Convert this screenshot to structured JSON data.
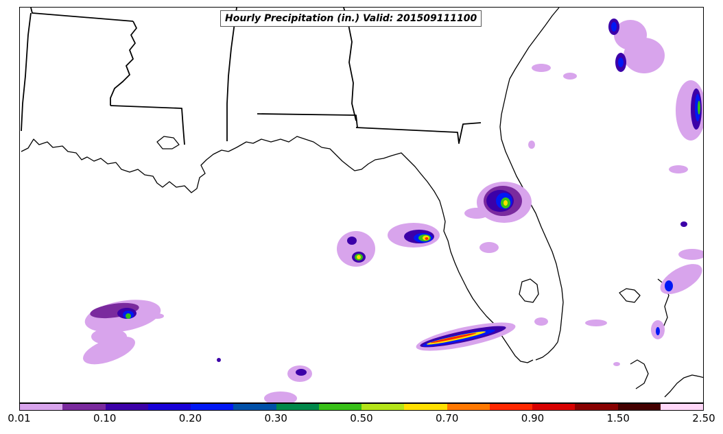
{
  "title": "Hourly Precipitation (in.) Valid: 201509111100",
  "colorbar": {
    "colors": [
      "#d8a4ec",
      "#7a2a9e",
      "#3c00a8",
      "#1800d8",
      "#0018f4",
      "#0050a8",
      "#00884a",
      "#38c018",
      "#b4e418",
      "#ffe000",
      "#ff7800",
      "#ff2800",
      "#d80000",
      "#880000",
      "#440000",
      "#ffd8f8"
    ],
    "tick_labels": [
      "0.01",
      "0.10",
      "0.20",
      "0.30",
      "0.50",
      "0.70",
      "0.90",
      "1.50",
      "2.50"
    ]
  },
  "legend": {
    "light": "#d8a4ec",
    "purple": "#7a2a9e",
    "deep": "#3c00a8",
    "blue": "#0018f4",
    "green": "#38c018",
    "yellow": "#ffe000",
    "red": "#ff2800"
  }
}
